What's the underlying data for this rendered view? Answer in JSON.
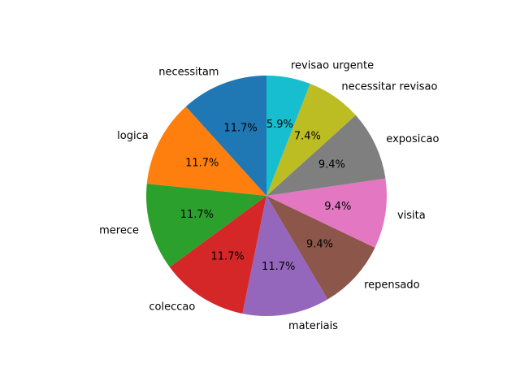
{
  "chart_data": {
    "type": "pie",
    "title": "",
    "start_angle_deg": 90,
    "direction": "counterclockwise",
    "slices": [
      {
        "label": "necessitam",
        "value": 11.7,
        "pct_text": "11.7%",
        "color": "#1f77b4"
      },
      {
        "label": "logica",
        "value": 11.7,
        "pct_text": "11.7%",
        "color": "#ff7f0e"
      },
      {
        "label": "merece",
        "value": 11.7,
        "pct_text": "11.7%",
        "color": "#2ca02c"
      },
      {
        "label": "coleccao",
        "value": 11.7,
        "pct_text": "11.7%",
        "color": "#d62728"
      },
      {
        "label": "materiais",
        "value": 11.7,
        "pct_text": "11.7%",
        "color": "#9467bd"
      },
      {
        "label": "repensado",
        "value": 9.4,
        "pct_text": "9.4%",
        "color": "#8c564b"
      },
      {
        "label": "visita",
        "value": 9.4,
        "pct_text": "9.4%",
        "color": "#e377c2"
      },
      {
        "label": "exposicao",
        "value": 9.4,
        "pct_text": "9.4%",
        "color": "#7f7f7f"
      },
      {
        "label": "necessitar revisao",
        "value": 7.4,
        "pct_text": "7.4%",
        "color": "#bcbd22"
      },
      {
        "label": "revisao urgente",
        "value": 5.9,
        "pct_text": "5.9%",
        "color": "#17becf"
      }
    ]
  }
}
